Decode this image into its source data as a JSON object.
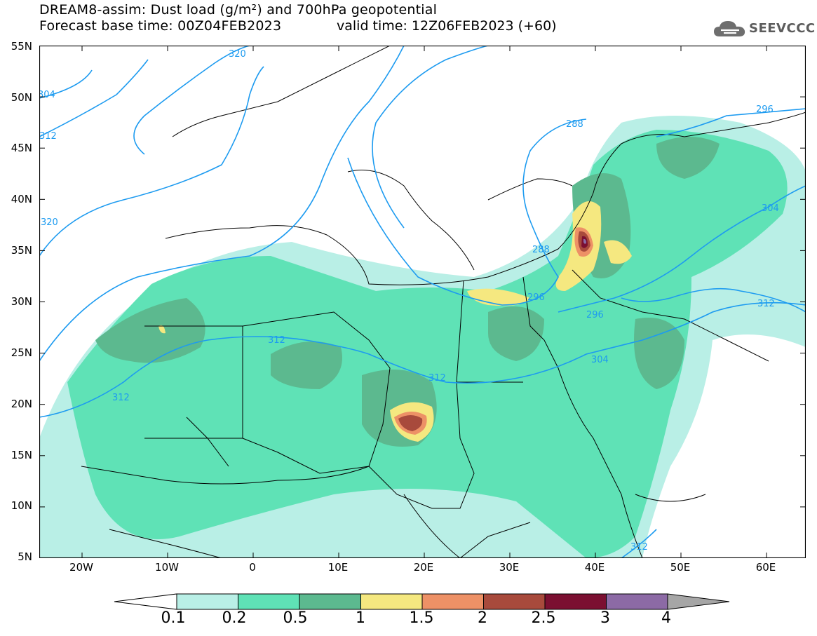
{
  "header": {
    "title_line1": "DREAM8-assim: Dust load (g/m²) and 700hPa geopotential",
    "title_line2_left": "Forecast base time: 00Z04FEB2023",
    "title_line2_right": "valid time: 12Z06FEB2023 (+60)",
    "logo_text": "SEEVCCC",
    "logo_icon": "cloud-icon"
  },
  "map": {
    "lat_labels": [
      "55N",
      "50N",
      "45N",
      "40N",
      "35N",
      "30N",
      "25N",
      "20N",
      "15N",
      "10N",
      "5N"
    ],
    "lon_labels": [
      "20W",
      "10W",
      "0",
      "10E",
      "20E",
      "30E",
      "40E",
      "50E",
      "60E"
    ],
    "contour_labels": [
      "320",
      "304",
      "312",
      "320",
      "312",
      "312",
      "312",
      "296",
      "288",
      "296",
      "304",
      "312",
      "296",
      "304",
      "312",
      "288"
    ]
  },
  "colorbar": {
    "levels": [
      "0.1",
      "0.2",
      "0.5",
      "1",
      "1.5",
      "2",
      "2.5",
      "3",
      "4"
    ],
    "colors": [
      "#ffffff",
      "#b9efe6",
      "#5fe2b6",
      "#5cb98f",
      "#f5e880",
      "#ed9166",
      "#a84a3c",
      "#7b0f31",
      "#8c6aa5",
      "#a6a6a6"
    ]
  }
}
